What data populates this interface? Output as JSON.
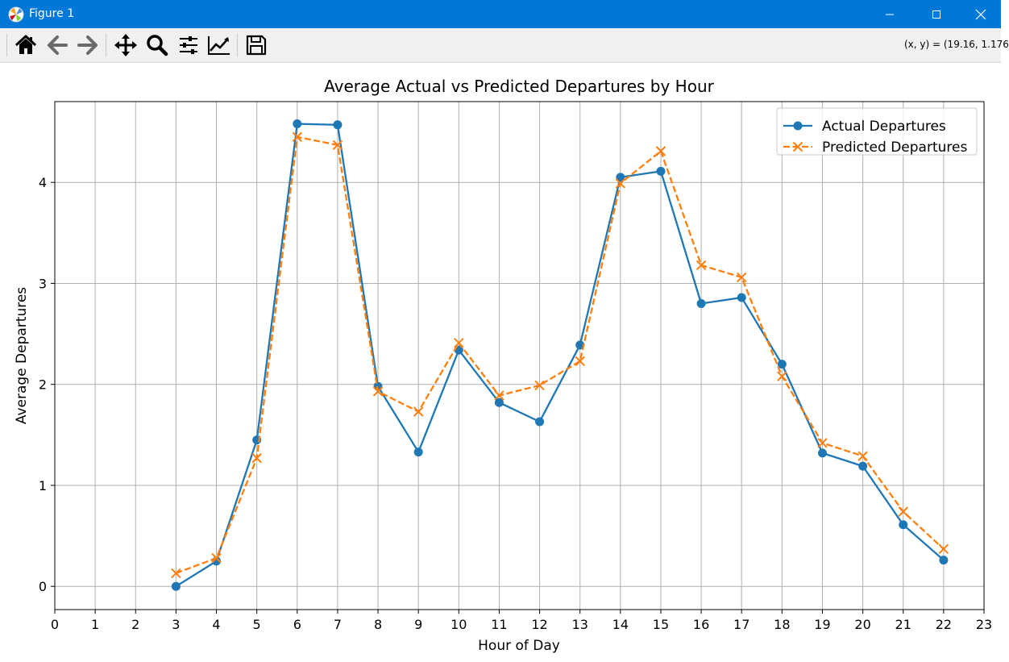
{
  "window": {
    "title": "Figure 1",
    "coords_readout": "(x, y) = (19.16, 1.176"
  },
  "toolbar": {
    "buttons": [
      "home-icon",
      "back-arrow-icon",
      "forward-arrow-icon",
      "pan-icon",
      "zoom-icon",
      "subplots-icon",
      "axes-edit-icon",
      "save-icon"
    ]
  },
  "chart_data": {
    "type": "line",
    "title": "Average Actual vs Predicted Departures by Hour",
    "xlabel": "Hour of Day",
    "ylabel": "Average Departures",
    "xlim": [
      0,
      23
    ],
    "ylim": [
      -0.23,
      4.8
    ],
    "xticks": [
      "0",
      "1",
      "2",
      "3",
      "4",
      "5",
      "6",
      "7",
      "8",
      "9",
      "10",
      "11",
      "12",
      "13",
      "14",
      "15",
      "16",
      "17",
      "18",
      "19",
      "20",
      "21",
      "22",
      "23"
    ],
    "yticks": [
      "0",
      "1",
      "2",
      "3",
      "4"
    ],
    "grid": true,
    "legend_position": "top-right",
    "x": [
      3,
      4,
      5,
      6,
      7,
      8,
      9,
      10,
      11,
      12,
      13,
      14,
      15,
      16,
      17,
      18,
      19,
      20,
      21,
      22
    ],
    "series": [
      {
        "name": "Actual Departures",
        "color": "#1f77b4",
        "marker": "circle",
        "linestyle": "solid",
        "values": [
          0.0,
          0.25,
          1.45,
          4.58,
          4.57,
          1.98,
          1.33,
          2.34,
          1.82,
          1.63,
          2.39,
          4.05,
          4.11,
          2.8,
          2.86,
          2.2,
          1.32,
          1.19,
          0.61,
          0.26
        ]
      },
      {
        "name": "Predicted Departures",
        "color": "#ff7f0e",
        "marker": "x",
        "linestyle": "dashed",
        "values": [
          0.13,
          0.28,
          1.27,
          4.45,
          4.37,
          1.93,
          1.73,
          2.41,
          1.89,
          1.99,
          2.23,
          3.99,
          4.31,
          3.18,
          3.06,
          2.08,
          1.42,
          1.29,
          0.74,
          0.37
        ]
      }
    ]
  }
}
